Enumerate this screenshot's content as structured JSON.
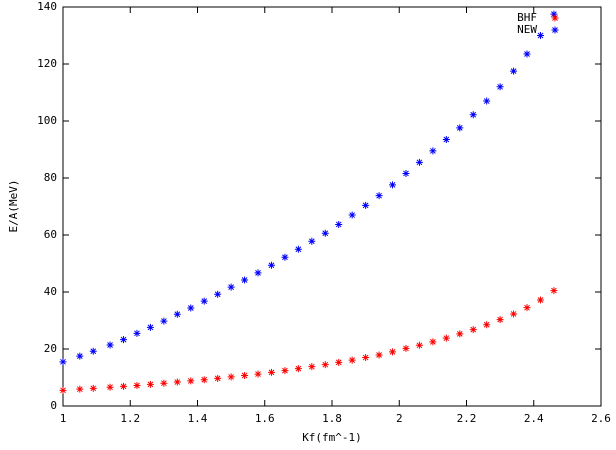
{
  "chart_data": {
    "type": "scatter",
    "xlabel": "Kf(fm^-1)",
    "ylabel": "E/A(MeV)",
    "xlim": [
      1,
      2.6
    ],
    "xticks": [
      1,
      1.2,
      1.4,
      1.6,
      1.8,
      2,
      2.2,
      2.4,
      2.6
    ],
    "ylim": [
      0,
      140
    ],
    "yticks": [
      0,
      20,
      40,
      60,
      80,
      100,
      120,
      140
    ],
    "legend": "top right",
    "marker": "star",
    "series": [
      {
        "name": "BHF",
        "color": "#ff0000",
        "x": [
          1.0,
          1.05,
          1.09,
          1.14,
          1.18,
          1.22,
          1.26,
          1.3,
          1.34,
          1.38,
          1.42,
          1.46,
          1.5,
          1.54,
          1.58,
          1.62,
          1.66,
          1.7,
          1.74,
          1.78,
          1.82,
          1.86,
          1.9,
          1.94,
          1.98,
          2.02,
          2.06,
          2.1,
          2.14,
          2.18,
          2.22,
          2.26,
          2.3,
          2.34,
          2.38,
          2.42,
          2.46
        ],
        "values": [
          5.5,
          5.9,
          6.2,
          6.6,
          6.9,
          7.2,
          7.6,
          8.0,
          8.4,
          8.8,
          9.2,
          9.7,
          10.2,
          10.7,
          11.2,
          11.8,
          12.4,
          13.1,
          13.8,
          14.5,
          15.3,
          16.1,
          17.0,
          17.9,
          19.0,
          20.2,
          21.3,
          22.5,
          23.8,
          25.3,
          26.8,
          28.5,
          30.3,
          32.3,
          34.5,
          37.2,
          40.5
        ]
      },
      {
        "name": "NEW",
        "color": "#0000ff",
        "x": [
          1.0,
          1.05,
          1.09,
          1.14,
          1.18,
          1.22,
          1.26,
          1.3,
          1.34,
          1.38,
          1.42,
          1.46,
          1.5,
          1.54,
          1.58,
          1.62,
          1.66,
          1.7,
          1.74,
          1.78,
          1.82,
          1.86,
          1.9,
          1.94,
          1.98,
          2.02,
          2.06,
          2.1,
          2.14,
          2.18,
          2.22,
          2.26,
          2.3,
          2.34,
          2.38,
          2.42,
          2.46
        ],
        "values": [
          15.5,
          17.5,
          19.2,
          21.4,
          23.3,
          25.5,
          27.6,
          29.8,
          32.2,
          34.4,
          36.8,
          39.2,
          41.7,
          44.2,
          46.7,
          49.4,
          52.2,
          55,
          57.8,
          60.6,
          63.7,
          67,
          70.4,
          73.8,
          77.6,
          81.6,
          85.5,
          89.5,
          93.5,
          97.6,
          102.2,
          107,
          112,
          117.5,
          123.5,
          130,
          137.5
        ]
      }
    ]
  }
}
